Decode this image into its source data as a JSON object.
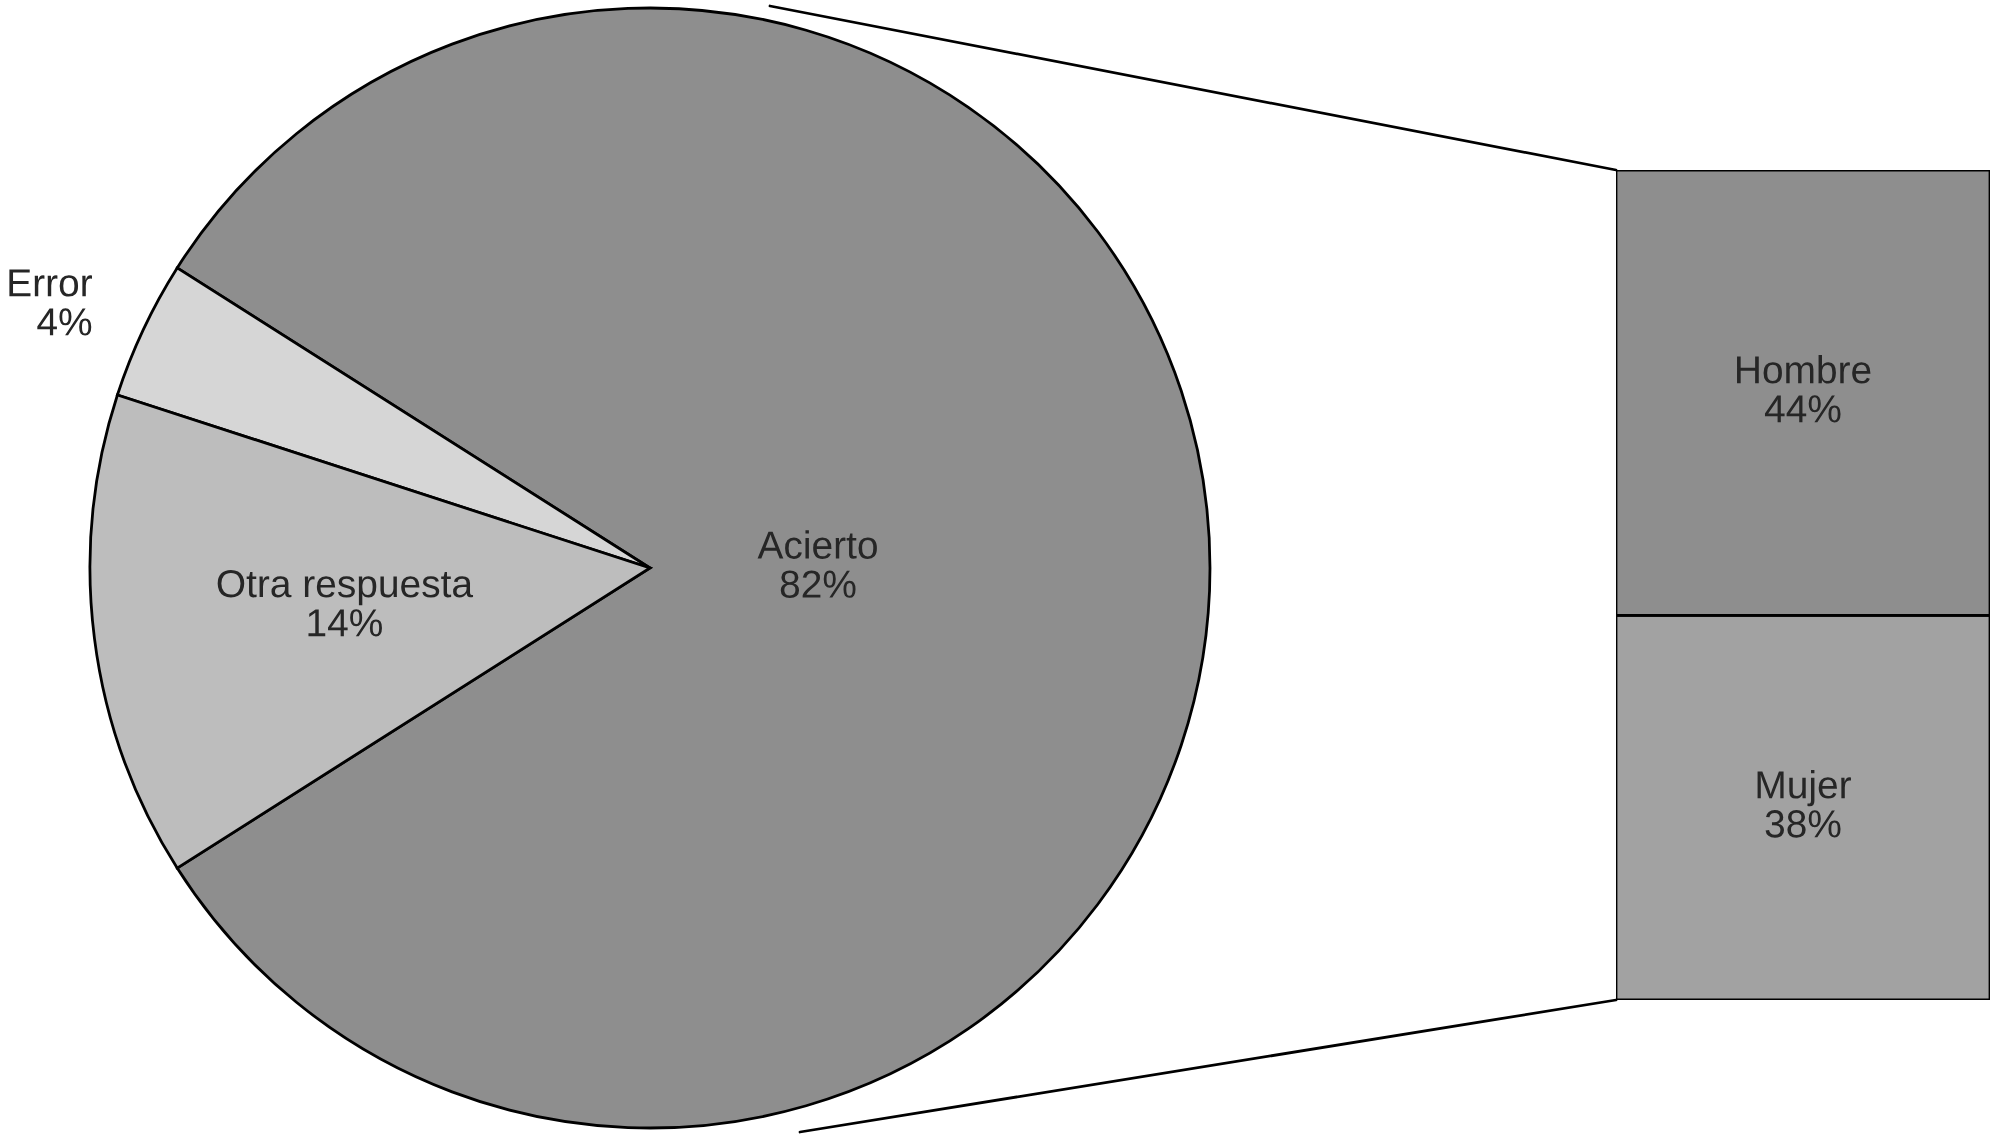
{
  "chart_data": [
    {
      "type": "pie",
      "categories": [
        "Acierto",
        "Error",
        "Otra respuesta"
      ],
      "values": [
        82,
        4,
        14
      ],
      "value_labels": [
        "82%",
        "4%",
        "14%"
      ],
      "colors": [
        "#8e8e8e",
        "#d6d6d6",
        "#bdbdbd"
      ],
      "legend": false
    },
    {
      "type": "bar",
      "stacked": true,
      "categories": [
        null
      ],
      "series": [
        {
          "name": "Mujer",
          "color": "#a2a2a2",
          "values": [
            38
          ],
          "value_labels": [
            "38%"
          ]
        },
        {
          "name": "Hombre",
          "color": "#8e8e8e",
          "values": [
            44
          ],
          "value_labels": [
            "44%"
          ]
        }
      ]
    }
  ]
}
